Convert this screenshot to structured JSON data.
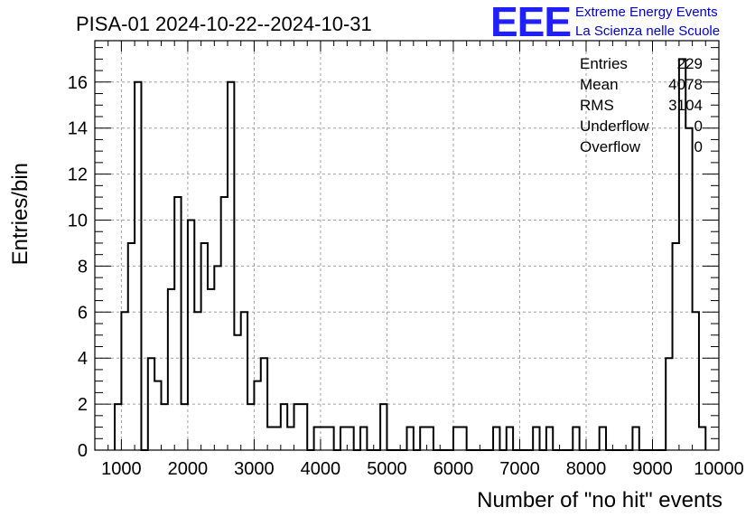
{
  "chart_data": {
    "type": "bar",
    "title": "PISA-01 2024-10-22--2024-10-31",
    "xlabel": "Number of \"no hit\" events",
    "ylabel": "Entries/bin",
    "xlim": [
      600,
      10000
    ],
    "ylim": [
      0,
      17.8
    ],
    "bin_width": 100,
    "x_ticks": [
      1000,
      2000,
      3000,
      4000,
      5000,
      6000,
      7000,
      8000,
      9000,
      10000
    ],
    "y_ticks": [
      0,
      2,
      4,
      6,
      8,
      10,
      12,
      14,
      16
    ],
    "grid": true,
    "bins": [
      {
        "x": 900,
        "y": 2
      },
      {
        "x": 1000,
        "y": 6
      },
      {
        "x": 1100,
        "y": 9
      },
      {
        "x": 1200,
        "y": 16
      },
      {
        "x": 1300,
        "y": 0
      },
      {
        "x": 1400,
        "y": 4
      },
      {
        "x": 1500,
        "y": 3
      },
      {
        "x": 1600,
        "y": 2
      },
      {
        "x": 1700,
        "y": 7
      },
      {
        "x": 1800,
        "y": 11
      },
      {
        "x": 1900,
        "y": 2
      },
      {
        "x": 2000,
        "y": 10
      },
      {
        "x": 2100,
        "y": 6
      },
      {
        "x": 2200,
        "y": 9
      },
      {
        "x": 2300,
        "y": 7
      },
      {
        "x": 2400,
        "y": 8
      },
      {
        "x": 2500,
        "y": 11
      },
      {
        "x": 2600,
        "y": 16
      },
      {
        "x": 2700,
        "y": 5
      },
      {
        "x": 2800,
        "y": 6
      },
      {
        "x": 2900,
        "y": 2
      },
      {
        "x": 3000,
        "y": 3
      },
      {
        "x": 3100,
        "y": 4
      },
      {
        "x": 3200,
        "y": 1
      },
      {
        "x": 3300,
        "y": 1
      },
      {
        "x": 3400,
        "y": 2
      },
      {
        "x": 3500,
        "y": 1
      },
      {
        "x": 3600,
        "y": 2
      },
      {
        "x": 3700,
        "y": 2
      },
      {
        "x": 3800,
        "y": 0
      },
      {
        "x": 3900,
        "y": 1
      },
      {
        "x": 4000,
        "y": 1
      },
      {
        "x": 4100,
        "y": 1
      },
      {
        "x": 4200,
        "y": 0
      },
      {
        "x": 4300,
        "y": 1
      },
      {
        "x": 4400,
        "y": 1
      },
      {
        "x": 4500,
        "y": 0
      },
      {
        "x": 4600,
        "y": 1
      },
      {
        "x": 4700,
        "y": 0
      },
      {
        "x": 4800,
        "y": 0
      },
      {
        "x": 4900,
        "y": 2
      },
      {
        "x": 5000,
        "y": 0
      },
      {
        "x": 5100,
        "y": 0
      },
      {
        "x": 5200,
        "y": 0
      },
      {
        "x": 5300,
        "y": 1
      },
      {
        "x": 5400,
        "y": 0
      },
      {
        "x": 5500,
        "y": 1
      },
      {
        "x": 5600,
        "y": 1
      },
      {
        "x": 5700,
        "y": 0
      },
      {
        "x": 5800,
        "y": 0
      },
      {
        "x": 5900,
        "y": 0
      },
      {
        "x": 6000,
        "y": 1
      },
      {
        "x": 6100,
        "y": 1
      },
      {
        "x": 6200,
        "y": 0
      },
      {
        "x": 6300,
        "y": 0
      },
      {
        "x": 6400,
        "y": 0
      },
      {
        "x": 6500,
        "y": 0
      },
      {
        "x": 6600,
        "y": 1
      },
      {
        "x": 6700,
        "y": 0
      },
      {
        "x": 6800,
        "y": 1
      },
      {
        "x": 6900,
        "y": 0
      },
      {
        "x": 7000,
        "y": 0
      },
      {
        "x": 7100,
        "y": 0
      },
      {
        "x": 7200,
        "y": 1
      },
      {
        "x": 7300,
        "y": 0
      },
      {
        "x": 7400,
        "y": 1
      },
      {
        "x": 7500,
        "y": 0
      },
      {
        "x": 7600,
        "y": 0
      },
      {
        "x": 7700,
        "y": 0
      },
      {
        "x": 7800,
        "y": 1
      },
      {
        "x": 7900,
        "y": 0
      },
      {
        "x": 8000,
        "y": 0
      },
      {
        "x": 8100,
        "y": 0
      },
      {
        "x": 8200,
        "y": 1
      },
      {
        "x": 8300,
        "y": 0
      },
      {
        "x": 8400,
        "y": 0
      },
      {
        "x": 8500,
        "y": 0
      },
      {
        "x": 8600,
        "y": 0
      },
      {
        "x": 8700,
        "y": 1
      },
      {
        "x": 8800,
        "y": 0
      },
      {
        "x": 8900,
        "y": 0
      },
      {
        "x": 9000,
        "y": 0
      },
      {
        "x": 9100,
        "y": 0
      },
      {
        "x": 9200,
        "y": 4
      },
      {
        "x": 9300,
        "y": 9
      },
      {
        "x": 9400,
        "y": 17
      },
      {
        "x": 9500,
        "y": 14
      },
      {
        "x": 9600,
        "y": 6
      },
      {
        "x": 9700,
        "y": 1
      }
    ],
    "stats": [
      {
        "label": "Entries",
        "value": "229"
      },
      {
        "label": "Mean",
        "value": "4078"
      },
      {
        "label": "RMS",
        "value": "3104"
      },
      {
        "label": "Underflow",
        "value": "0"
      },
      {
        "label": "Overflow",
        "value": "0"
      }
    ]
  },
  "logo": {
    "mark": "EEE",
    "line1": "Extreme Energy Events",
    "line2": "La Scienza nelle Scuole",
    "color": "#1f1fff"
  }
}
